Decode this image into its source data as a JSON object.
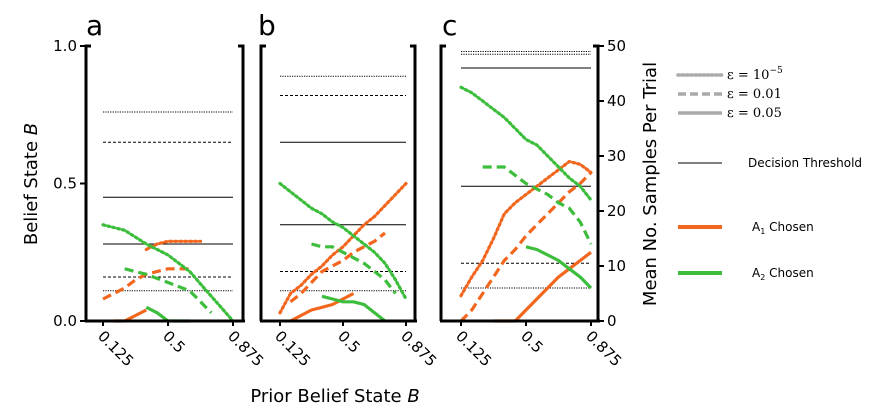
{
  "chart_data": [
    {
      "panel": "a",
      "type": "line",
      "x_ticks": [
        "0.125",
        "0.5",
        "0.875"
      ],
      "xlim": [
        0.125,
        0.875
      ],
      "ylim": [
        0.0,
        1.0
      ],
      "y_ticks": [
        "0.0",
        "0.5",
        "1.0"
      ],
      "thresholds": [
        {
          "epsilon": "1e-5",
          "values": [
            0.76,
            0.11
          ]
        },
        {
          "epsilon": "0.01",
          "values": [
            0.65,
            0.16
          ]
        },
        {
          "epsilon": "0.05",
          "values": [
            0.45,
            0.28
          ]
        }
      ],
      "series": [
        {
          "choice": "A1",
          "epsilon": "1e-5",
          "x": [
            0.375,
            0.4375,
            0.5,
            0.5625,
            0.625,
            0.6875
          ],
          "y": [
            0.26,
            0.28,
            0.29,
            0.29,
            0.29,
            0.29
          ]
        },
        {
          "choice": "A1",
          "epsilon": "0.01",
          "x": [
            0.125,
            0.1875,
            0.25,
            0.3125,
            0.375,
            0.4375,
            0.5,
            0.5625,
            0.625
          ],
          "y": [
            0.08,
            0.1,
            0.12,
            0.15,
            0.17,
            0.18,
            0.19,
            0.19,
            0.19
          ]
        },
        {
          "choice": "A1",
          "epsilon": "0.05",
          "x": [
            0.1875,
            0.25,
            0.3125,
            0.375
          ],
          "y": [
            0.0,
            0.0,
            0.02,
            0.04
          ]
        },
        {
          "choice": "A2",
          "epsilon": "1e-5",
          "x": [
            0.125,
            0.25,
            0.375,
            0.5,
            0.625,
            0.75,
            0.875
          ],
          "y": [
            0.35,
            0.33,
            0.28,
            0.24,
            0.18,
            0.09,
            0.0
          ]
        },
        {
          "choice": "A2",
          "epsilon": "0.01",
          "x": [
            0.25,
            0.375,
            0.5,
            0.625,
            0.6875,
            0.75
          ],
          "y": [
            0.19,
            0.17,
            0.14,
            0.11,
            0.07,
            0.03
          ]
        },
        {
          "choice": "A2",
          "epsilon": "0.05",
          "x": [
            0.375,
            0.4375,
            0.5,
            0.5625,
            0.625
          ],
          "y": [
            0.05,
            0.03,
            0.0,
            0.0,
            0.0
          ]
        }
      ]
    },
    {
      "panel": "b",
      "type": "line",
      "x_ticks": [
        "0.125",
        "0.5",
        "0.875"
      ],
      "xlim": [
        0.125,
        0.875
      ],
      "ylim": [
        0.0,
        1.0
      ],
      "y_ticks": [],
      "thresholds": [
        {
          "epsilon": "1e-5",
          "values": [
            0.89,
            0.11
          ]
        },
        {
          "epsilon": "0.01",
          "values": [
            0.82,
            0.18
          ]
        },
        {
          "epsilon": "0.05",
          "values": [
            0.65,
            0.35
          ]
        }
      ],
      "series": [
        {
          "choice": "A1",
          "epsilon": "1e-5",
          "x": [
            0.125,
            0.1875,
            0.25,
            0.3125,
            0.375,
            0.4375,
            0.5,
            0.5625,
            0.625,
            0.6875,
            0.75,
            0.8125,
            0.875
          ],
          "y": [
            0.03,
            0.1,
            0.13,
            0.17,
            0.2,
            0.24,
            0.27,
            0.31,
            0.35,
            0.38,
            0.42,
            0.46,
            0.5
          ]
        },
        {
          "choice": "A1",
          "epsilon": "0.01",
          "x": [
            0.1875,
            0.25,
            0.3125,
            0.375,
            0.4375,
            0.5,
            0.5625,
            0.625,
            0.6875,
            0.75
          ],
          "y": [
            0.07,
            0.1,
            0.14,
            0.18,
            0.2,
            0.22,
            0.25,
            0.27,
            0.29,
            0.32
          ]
        },
        {
          "choice": "A1",
          "epsilon": "0.05",
          "x": [
            0.1875,
            0.25,
            0.3125,
            0.375,
            0.4375,
            0.5,
            0.5625
          ],
          "y": [
            0.0,
            0.02,
            0.04,
            0.05,
            0.06,
            0.08,
            0.1
          ]
        },
        {
          "choice": "A2",
          "epsilon": "1e-5",
          "x": [
            0.125,
            0.1875,
            0.25,
            0.3125,
            0.375,
            0.4375,
            0.5,
            0.5625,
            0.625,
            0.6875,
            0.75,
            0.8125,
            0.875
          ],
          "y": [
            0.5,
            0.47,
            0.44,
            0.41,
            0.39,
            0.36,
            0.34,
            0.31,
            0.28,
            0.25,
            0.21,
            0.15,
            0.08
          ]
        },
        {
          "choice": "A2",
          "epsilon": "0.01",
          "x": [
            0.3125,
            0.375,
            0.4375,
            0.5,
            0.5625,
            0.625,
            0.6875,
            0.75,
            0.8125
          ],
          "y": [
            0.28,
            0.27,
            0.27,
            0.25,
            0.23,
            0.21,
            0.18,
            0.15,
            0.1
          ]
        },
        {
          "choice": "A2",
          "epsilon": "0.05",
          "x": [
            0.375,
            0.4375,
            0.5,
            0.5625,
            0.625,
            0.6875,
            0.75
          ],
          "y": [
            0.09,
            0.08,
            0.07,
            0.07,
            0.06,
            0.03,
            0.0
          ]
        }
      ]
    },
    {
      "panel": "c",
      "type": "line",
      "x_ticks": [
        "0.125",
        "0.5",
        "0.875"
      ],
      "xlim": [
        0.125,
        0.875
      ],
      "ylim": [
        0,
        50
      ],
      "y_ticks": [
        "0",
        "10",
        "20",
        "30",
        "40",
        "50"
      ],
      "thresholds": [
        {
          "epsilon": "1e-5",
          "values": [
            0.98,
            0.97,
            0.12
          ]
        },
        {
          "epsilon": "0.01",
          "values": [
            0.21
          ]
        },
        {
          "epsilon": "0.05",
          "values": [
            0.92,
            0.49
          ]
        }
      ],
      "series": [
        {
          "choice": "A1",
          "epsilon": "1e-5",
          "x": [
            0.125,
            0.1875,
            0.25,
            0.3125,
            0.375,
            0.4375,
            0.5,
            0.5625,
            0.625,
            0.6875,
            0.75,
            0.8125,
            0.875
          ],
          "y": [
            4.6,
            8.0,
            11.0,
            15.0,
            19.5,
            21.5,
            23.0,
            24.5,
            26.0,
            27.5,
            29.0,
            28.5,
            27.0
          ]
        },
        {
          "choice": "A1",
          "epsilon": "0.01",
          "x": [
            0.125,
            0.1875,
            0.25,
            0.3125,
            0.375,
            0.4375,
            0.5,
            0.5625,
            0.625,
            0.6875,
            0.75,
            0.8125,
            0.875
          ],
          "y": [
            0.0,
            2.0,
            5.0,
            8.0,
            11.0,
            13.0,
            15.5,
            17.5,
            19.5,
            21.5,
            23.5,
            25.0,
            27.0
          ]
        },
        {
          "choice": "A1",
          "epsilon": "0.05",
          "x": [
            0.3125,
            0.375,
            0.4375,
            0.5,
            0.5625,
            0.625,
            0.6875,
            0.75,
            0.8125,
            0.875
          ],
          "y": [
            0.0,
            0.0,
            0.0,
            2.0,
            4.0,
            6.0,
            8.0,
            9.5,
            11.0,
            12.5
          ]
        },
        {
          "choice": "A2",
          "epsilon": "1e-5",
          "x": [
            0.125,
            0.1875,
            0.25,
            0.3125,
            0.375,
            0.4375,
            0.5,
            0.5625,
            0.625,
            0.6875,
            0.75,
            0.8125,
            0.875
          ],
          "y": [
            42.5,
            41.5,
            40.0,
            38.5,
            37.0,
            35.0,
            33.0,
            32.0,
            30.0,
            28.0,
            26.0,
            24.5,
            22.0
          ]
        },
        {
          "choice": "A2",
          "epsilon": "0.01",
          "x": [
            0.25,
            0.3125,
            0.375,
            0.4375,
            0.5,
            0.5625,
            0.625,
            0.6875,
            0.75,
            0.8125,
            0.875
          ],
          "y": [
            28.0,
            28.0,
            28.0,
            26.5,
            25.0,
            24.0,
            23.0,
            21.5,
            20.5,
            18.0,
            14.0
          ]
        },
        {
          "choice": "A2",
          "epsilon": "0.05",
          "x": [
            0.5,
            0.5625,
            0.625,
            0.6875,
            0.75,
            0.8125,
            0.875
          ],
          "y": [
            13.5,
            13.0,
            12.0,
            11.0,
            9.5,
            8.0,
            6.0
          ]
        }
      ]
    }
  ],
  "labels": {
    "panel_a": "a",
    "panel_b": "b",
    "panel_c": "c",
    "ylabel_left": "Belief State ",
    "ylabel_left_var": "B",
    "ylabel_right": "Mean No. Samples Per Trial",
    "xlabel": "Prior Belief State ",
    "xlabel_var": "B"
  },
  "legend": {
    "eps1": "ε = 10",
    "eps1_exp": "−5",
    "eps2": "ε = 0.01",
    "eps3": "ε = 0.05",
    "threshold": "Decision Threshold",
    "a1_prefix": "A",
    "a1_sub": "1",
    "a1_suffix": " Chosen",
    "a2_prefix": "A",
    "a2_sub": "2",
    "a2_suffix": " Chosen"
  },
  "colors": {
    "orange": "#f2661e",
    "green": "#3cbd3c",
    "legend_gray": "#aaaaaa",
    "axis": "#000000"
  }
}
